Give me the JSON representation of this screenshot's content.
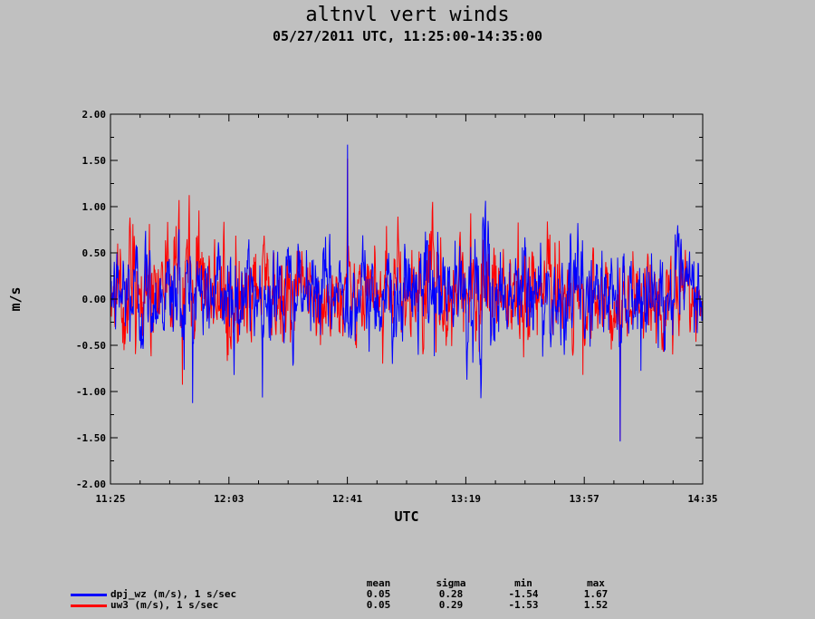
{
  "title": "altnvl vert winds",
  "subtitle": "05/27/2011  UTC, 11:25:00-14:35:00",
  "chart_data": {
    "type": "line",
    "title": "altnvl vert winds",
    "subtitle": "05/27/2011  UTC, 11:25:00-14:35:00",
    "xlabel": "UTC",
    "ylabel": "m/s",
    "x_start": "11:25",
    "x_end": "14:35",
    "x_ticks": [
      "11:25",
      "12:03",
      "12:41",
      "13:19",
      "13:57",
      "14:35"
    ],
    "ylim": [
      -2.0,
      2.0
    ],
    "y_ticks": [
      "2.00",
      "1.50",
      "1.00",
      "0.50",
      "0.00",
      "-0.50",
      "-1.00",
      "-1.50",
      "-2.00"
    ],
    "grid": false,
    "legend_placement": "bottom-left",
    "series": [
      {
        "name": "dpj_wz (m/s), 1 s/sec",
        "color": "#0000ff",
        "mean": 0.05,
        "sigma": 0.28,
        "min": -1.54,
        "max": 1.67
      },
      {
        "name": "uw3 (m/s), 1 s/sec",
        "color": "#ff0000",
        "mean": 0.05,
        "sigma": 0.29,
        "min": -1.53,
        "max": 1.52
      }
    ]
  },
  "stats": {
    "headers": [
      "mean",
      "sigma",
      "min",
      "max"
    ],
    "rows": [
      {
        "label": "dpj_wz (m/s), 1 s/sec",
        "mean": "0.05",
        "sigma": "0.28",
        "min": "-1.54",
        "max": "1.67",
        "color": "#0000ff"
      },
      {
        "label": "uw3 (m/s), 1 s/sec",
        "mean": "0.05",
        "sigma": "0.29",
        "min": "-1.53",
        "max": "1.52",
        "color": "#ff0000"
      }
    ]
  }
}
